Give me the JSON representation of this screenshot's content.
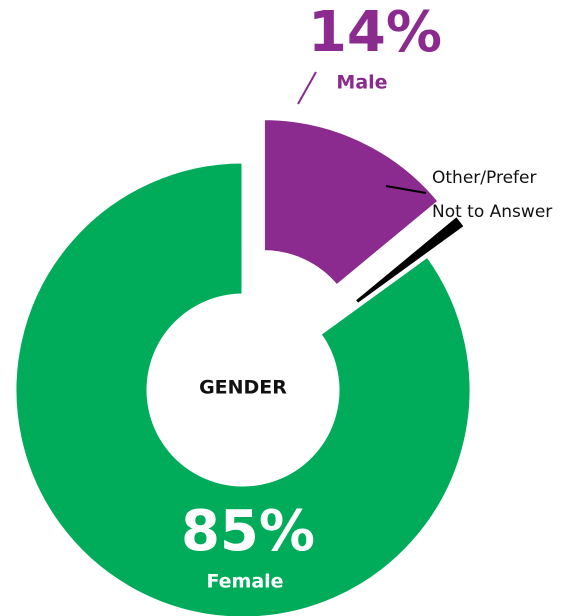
{
  "chart_data": {
    "type": "pie",
    "donut": true,
    "center_label": "GENDER",
    "categories": [
      "Male",
      "Other/Prefer Not to Answer",
      "Female"
    ],
    "values": [
      14,
      1,
      85
    ],
    "value_labels": [
      "14%",
      null,
      "85%"
    ],
    "colors": [
      "#8b2a8f",
      "#000000",
      "#00ac5a"
    ]
  }
}
